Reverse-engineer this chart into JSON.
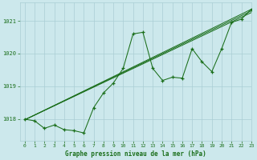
{
  "xlabel": "Graphe pression niveau de la mer (hPa)",
  "background_color": "#cce8ec",
  "grid_color": "#aacdd4",
  "line_color": "#1a6e1a",
  "xlim": [
    -0.5,
    23
  ],
  "ylim": [
    1017.35,
    1021.55
  ],
  "yticks": [
    1018,
    1019,
    1020,
    1021
  ],
  "xticks": [
    0,
    1,
    2,
    3,
    4,
    5,
    6,
    7,
    8,
    9,
    10,
    11,
    12,
    13,
    14,
    15,
    16,
    17,
    18,
    19,
    20,
    21,
    22,
    23
  ],
  "series1_x": [
    0,
    1,
    2,
    3,
    4,
    5,
    6,
    7,
    8,
    9,
    10,
    11,
    12,
    13,
    14,
    15,
    16,
    17,
    18,
    19,
    20,
    21,
    22,
    23
  ],
  "series1_y": [
    1018.0,
    1017.95,
    1017.72,
    1017.82,
    1017.68,
    1017.65,
    1017.58,
    1018.35,
    1018.8,
    1019.1,
    1019.55,
    1020.6,
    1020.65,
    1019.55,
    1019.18,
    1019.28,
    1019.25,
    1020.15,
    1019.75,
    1019.45,
    1020.15,
    1020.95,
    1021.05,
    1021.35
  ],
  "trend1_x": [
    0,
    23
  ],
  "trend1_y": [
    1017.98,
    1021.35
  ],
  "trend2_x": [
    0,
    23
  ],
  "trend2_y": [
    1017.98,
    1021.3
  ],
  "trend3_x": [
    0,
    23
  ],
  "trend3_y": [
    1017.98,
    1021.25
  ]
}
